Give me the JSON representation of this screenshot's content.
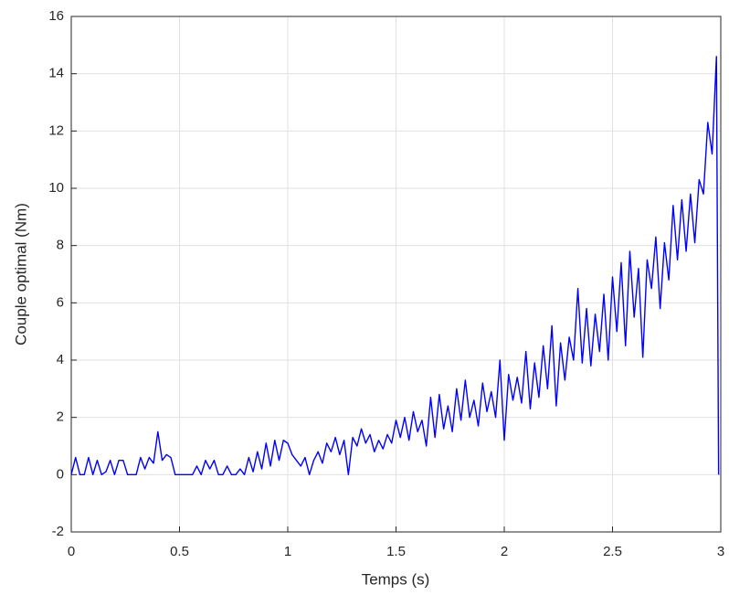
{
  "chart_data": {
    "type": "line",
    "x_label": "Temps (s)",
    "y_label": "Couple optimal (Nm)",
    "x": [
      0,
      0.02,
      0.04,
      0.06,
      0.08,
      0.1,
      0.12,
      0.14,
      0.16,
      0.18,
      0.2,
      0.22,
      0.24,
      0.26,
      0.28,
      0.3,
      0.32,
      0.34,
      0.36,
      0.38,
      0.4,
      0.42,
      0.44,
      0.46,
      0.48,
      0.5,
      0.52,
      0.54,
      0.56,
      0.58,
      0.6,
      0.62,
      0.64,
      0.66,
      0.68,
      0.7,
      0.72,
      0.74,
      0.76,
      0.78,
      0.8,
      0.82,
      0.84,
      0.86,
      0.88,
      0.9,
      0.92,
      0.94,
      0.96,
      0.98,
      1.0,
      1.02,
      1.04,
      1.06,
      1.08,
      1.1,
      1.12,
      1.14,
      1.16,
      1.18,
      1.2,
      1.22,
      1.24,
      1.26,
      1.28,
      1.3,
      1.32,
      1.34,
      1.36,
      1.38,
      1.4,
      1.42,
      1.44,
      1.46,
      1.48,
      1.5,
      1.52,
      1.54,
      1.56,
      1.58,
      1.6,
      1.62,
      1.64,
      1.66,
      1.68,
      1.7,
      1.72,
      1.74,
      1.76,
      1.78,
      1.8,
      1.82,
      1.84,
      1.86,
      1.88,
      1.9,
      1.92,
      1.94,
      1.96,
      1.98,
      2.0,
      2.02,
      2.04,
      2.06,
      2.08,
      2.1,
      2.12,
      2.14,
      2.16,
      2.18,
      2.2,
      2.22,
      2.24,
      2.26,
      2.28,
      2.3,
      2.32,
      2.34,
      2.36,
      2.38,
      2.4,
      2.42,
      2.44,
      2.46,
      2.48,
      2.5,
      2.52,
      2.54,
      2.56,
      2.58,
      2.6,
      2.62,
      2.64,
      2.66,
      2.68,
      2.7,
      2.72,
      2.74,
      2.76,
      2.78,
      2.8,
      2.82,
      2.84,
      2.86,
      2.88,
      2.9,
      2.92,
      2.94,
      2.96,
      2.98,
      2.99
    ],
    "series": [
      {
        "color": "#0000ff",
        "values": [
          0,
          0.6,
          0,
          0,
          0.6,
          0,
          0.5,
          0,
          0.1,
          0.5,
          0,
          0.5,
          0.5,
          0,
          0,
          0,
          0.6,
          0.2,
          0.6,
          0.4,
          1.5,
          0.5,
          0.7,
          0.6,
          0,
          0,
          0,
          0,
          0,
          0.3,
          0,
          0.5,
          0.2,
          0.5,
          0,
          0,
          0.3,
          0,
          0,
          0.2,
          0,
          0.6,
          0.1,
          0.8,
          0.2,
          1.1,
          0.3,
          1.2,
          0.5,
          1.2,
          1.1,
          0.7,
          0.5,
          0.3,
          0.6,
          0,
          0.5,
          0.8,
          0.4,
          1.1,
          0.8,
          1.3,
          0.7,
          1.2,
          0,
          1.3,
          1.0,
          1.6,
          1.1,
          1.4,
          0.8,
          1.2,
          0.9,
          1.4,
          1.1,
          1.9,
          1.3,
          2.0,
          1.2,
          2.2,
          1.5,
          1.9,
          1.0,
          2.7,
          1.3,
          2.8,
          1.6,
          2.4,
          1.5,
          3.0,
          1.9,
          3.3,
          2.0,
          2.6,
          1.7,
          3.2,
          2.2,
          2.9,
          2.0,
          4.0,
          1.2,
          3.5,
          2.6,
          3.4,
          2.5,
          4.3,
          2.3,
          3.9,
          2.7,
          4.5,
          3.0,
          5.2,
          2.4,
          4.6,
          3.3,
          4.8,
          4.0,
          6.5,
          3.9,
          5.8,
          3.8,
          5.6,
          4.3,
          6.3,
          4.0,
          6.9,
          5.0,
          7.4,
          4.5,
          7.8,
          5.5,
          7.2,
          4.1,
          7.5,
          6.5,
          8.3,
          5.8,
          8.1,
          6.8,
          9.4,
          7.5,
          9.6,
          7.8,
          9.8,
          8.1,
          10.3,
          9.8,
          12.3,
          11.2,
          14.6,
          0
        ]
      }
    ],
    "xlim": [
      0,
      3
    ],
    "xticks": [
      0,
      0.5,
      1,
      1.5,
      2,
      2.5,
      3
    ],
    "ylim": [
      -2,
      16
    ],
    "yticks": [
      -2,
      0,
      2,
      4,
      6,
      8,
      10,
      12,
      14,
      16
    ],
    "grid": true
  }
}
